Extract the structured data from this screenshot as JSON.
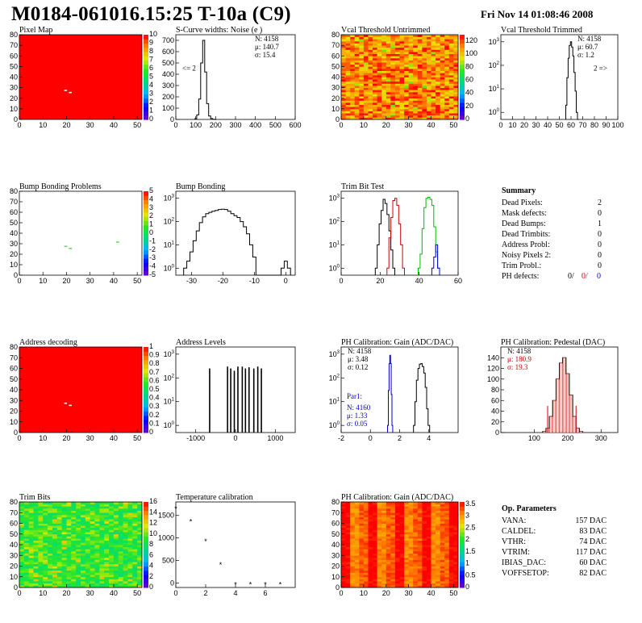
{
  "header": {
    "title": "M0184-061016.15:25 T-10a (C9)",
    "date": "Fri Nov 14 01:08:46 2008"
  },
  "colors": {
    "black": "#000000",
    "red": "#cc0000",
    "blue": "#0000cc",
    "green": "#00bb00",
    "bg": "#ffffff"
  },
  "chart_data": [
    {
      "id": "pixel_map",
      "type": "heatmap",
      "title": "Pixel Map",
      "xlim": [
        0,
        52
      ],
      "ylim": [
        0,
        80
      ],
      "xticks": [
        0,
        10,
        20,
        30,
        40,
        50
      ],
      "yticks": [
        0,
        10,
        20,
        30,
        40,
        50,
        60,
        70,
        80
      ],
      "zlim": [
        0,
        10
      ],
      "zticks": [
        0,
        1,
        2,
        3,
        4,
        5,
        6,
        7,
        8,
        9,
        10
      ],
      "fill": "red",
      "dead": [
        [
          19,
          27
        ],
        [
          21,
          25
        ]
      ]
    },
    {
      "id": "noise",
      "type": "histogram",
      "title": "S-Curve widths: Noise (e )",
      "xlim": [
        0,
        600
      ],
      "ylim": [
        0,
        750
      ],
      "log": false,
      "xticks": [
        0,
        100,
        200,
        300,
        400,
        500,
        600
      ],
      "yticks": [
        0,
        100,
        200,
        300,
        400,
        500,
        600,
        700
      ],
      "x": [
        100,
        110,
        120,
        130,
        140,
        150,
        160,
        170,
        180,
        190,
        200
      ],
      "values": [
        5,
        40,
        180,
        500,
        700,
        420,
        140,
        30,
        8,
        2,
        0
      ],
      "stats": [
        "N: 4158",
        "μ: 140.7",
        "σ: 15.4"
      ],
      "annotation": "<= 2"
    },
    {
      "id": "vcal_untrimmed",
      "type": "heatmap",
      "title": "Vcal Threshold Untrimmed",
      "xlim": [
        0,
        52
      ],
      "ylim": [
        0,
        80
      ],
      "xticks": [
        0,
        10,
        20,
        30,
        40,
        50
      ],
      "yticks": [
        0,
        10,
        20,
        30,
        40,
        50,
        60,
        70,
        80
      ],
      "zlim": [
        0,
        130
      ],
      "zticks": [
        0,
        20,
        40,
        60,
        80,
        100,
        120
      ],
      "fill": "noisy_orange"
    },
    {
      "id": "vcal_trimmed",
      "type": "histogram",
      "title": "Vcal Threshold Trimmed",
      "xlim": [
        0,
        100
      ],
      "ylim": [
        0.5,
        2000
      ],
      "log": true,
      "xticks": [
        0,
        10,
        20,
        30,
        40,
        50,
        60,
        70,
        80,
        90,
        100
      ],
      "yticks": [
        1,
        10,
        100,
        1000
      ],
      "x": [
        56,
        57,
        58,
        59,
        60,
        61,
        62,
        63,
        64,
        65,
        66
      ],
      "values": [
        2,
        30,
        200,
        700,
        1000,
        600,
        250,
        50,
        8,
        1,
        0
      ],
      "stats": [
        "N: 4158",
        "μ: 60.7",
        "σ:  1.2"
      ],
      "annotation": "2 =>"
    },
    {
      "id": "bump_problems",
      "type": "heatmap",
      "title": "Bump Bonding Problems",
      "xlim": [
        0,
        52
      ],
      "ylim": [
        0,
        80
      ],
      "xticks": [
        0,
        10,
        20,
        30,
        40,
        50
      ],
      "yticks": [
        0,
        10,
        20,
        30,
        40,
        50,
        60,
        70,
        80
      ],
      "zlim": [
        -5,
        5
      ],
      "zticks": [
        -5,
        -4,
        -3,
        -2,
        -1,
        0,
        1,
        2,
        3,
        4,
        5
      ],
      "fill": "white",
      "marks": [
        [
          19,
          27
        ],
        [
          21,
          25
        ],
        [
          41,
          31
        ]
      ]
    },
    {
      "id": "bump_bonding",
      "type": "histogram",
      "title": "Bump Bonding",
      "xlim": [
        -35,
        3
      ],
      "ylim": [
        0.5,
        2000
      ],
      "log": true,
      "xticks": [
        -30,
        -20,
        -10,
        0
      ],
      "yticks": [
        1,
        10,
        100,
        1000
      ],
      "x": [
        -32,
        -31,
        -30,
        -29,
        -28,
        -27,
        -26,
        -25,
        -24,
        -23,
        -22,
        -21,
        -20,
        -19,
        -18,
        -17,
        -16,
        -15,
        -14,
        -13,
        -12,
        -11,
        -10,
        -9,
        -8,
        -7,
        -6,
        -5,
        -4,
        -3,
        -2,
        -1,
        0,
        1
      ],
      "values": [
        1,
        2,
        5,
        15,
        40,
        90,
        160,
        220,
        250,
        280,
        300,
        330,
        340,
        330,
        280,
        220,
        180,
        150,
        100,
        60,
        30,
        10,
        3,
        0,
        0,
        0,
        0,
        0,
        0,
        0,
        0,
        1,
        2,
        1
      ]
    },
    {
      "id": "trim_bit_test",
      "type": "histogram",
      "title": "Trim Bit Test",
      "xlim": [
        0,
        60
      ],
      "ylim": [
        0.5,
        2000
      ],
      "log": true,
      "xticks": [
        0,
        20,
        40,
        60
      ],
      "yticks": [
        1,
        10,
        100,
        1000
      ],
      "series": [
        {
          "color": "#000000",
          "x": [
            18,
            19,
            20,
            21,
            22,
            23,
            24,
            25,
            26,
            27
          ],
          "values": [
            1,
            10,
            80,
            300,
            900,
            600,
            200,
            40,
            6,
            1
          ]
        },
        {
          "color": "#cc0000",
          "x": [
            24,
            25,
            26,
            27,
            28,
            29,
            30,
            31,
            32
          ],
          "values": [
            1,
            20,
            150,
            800,
            1000,
            500,
            80,
            10,
            1
          ]
        },
        {
          "color": "#00bb00",
          "x": [
            40,
            41,
            42,
            43,
            44,
            45,
            46,
            47,
            48,
            49,
            50
          ],
          "values": [
            1,
            4,
            50,
            400,
            1000,
            1100,
            900,
            500,
            60,
            5,
            1
          ]
        },
        {
          "color": "#0000cc",
          "x": [
            47,
            48,
            49,
            50
          ],
          "values": [
            1,
            3,
            10,
            1
          ]
        }
      ]
    },
    {
      "id": "address_decoding",
      "type": "heatmap",
      "title": "Address decoding",
      "xlim": [
        0,
        52
      ],
      "ylim": [
        0,
        80
      ],
      "xticks": [
        0,
        10,
        20,
        30,
        40,
        50
      ],
      "yticks": [
        0,
        10,
        20,
        30,
        40,
        50,
        60,
        70,
        80
      ],
      "zlim": [
        0,
        1
      ],
      "zticks": [
        0,
        0.1,
        0.2,
        0.3,
        0.4,
        0.5,
        0.6,
        0.7,
        0.8,
        0.9,
        1
      ],
      "fill": "red",
      "dead": [
        [
          19,
          27
        ],
        [
          21,
          25
        ]
      ]
    },
    {
      "id": "address_levels",
      "type": "histogram",
      "title": "Address Levels",
      "xlim": [
        -1500,
        1500
      ],
      "ylim": [
        0.5,
        2000
      ],
      "log": true,
      "xticks": [
        -1000,
        0,
        1000
      ],
      "yticks": [
        1,
        10,
        100,
        1000
      ],
      "spikes": [
        [
          -650,
          250
        ],
        [
          -200,
          300
        ],
        [
          -120,
          250
        ],
        [
          -30,
          200
        ],
        [
          60,
          300
        ],
        [
          170,
          300
        ],
        [
          250,
          250
        ],
        [
          340,
          280
        ],
        [
          460,
          250
        ],
        [
          560,
          300
        ],
        [
          650,
          250
        ]
      ]
    },
    {
      "id": "ph_gain",
      "type": "histogram",
      "title": "PH Calibration: Gain (ADC/DAC)",
      "xlim": [
        -2,
        6
      ],
      "ylim": [
        0.5,
        2000
      ],
      "log": true,
      "xticks": [
        -2,
        0,
        2,
        4
      ],
      "yticks": [
        1,
        10,
        100,
        1000
      ],
      "series": [
        {
          "color": "#000000",
          "x": [
            3.0,
            3.1,
            3.2,
            3.3,
            3.4,
            3.5,
            3.6,
            3.7,
            3.8,
            3.9,
            4.0
          ],
          "values": [
            1,
            10,
            80,
            250,
            380,
            400,
            300,
            160,
            40,
            5,
            1
          ]
        },
        {
          "color": "#0000cc",
          "x": [
            1.2,
            1.25,
            1.3,
            1.35,
            1.4,
            1.45,
            1.5
          ],
          "values": [
            1,
            30,
            400,
            900,
            400,
            20,
            1
          ]
        }
      ],
      "stats": [
        "N: 4158",
        "μ: 3.48",
        "σ: 0.12"
      ],
      "stats2_label": "Par1:",
      "stats2": [
        "N: 4160",
        "μ: 1.33",
        "σ: 0.05"
      ]
    },
    {
      "id": "ph_pedestal",
      "type": "histogram",
      "title": "PH Calibration: Pedestal (DAC)",
      "xlim": [
        0,
        350
      ],
      "ylim": [
        0,
        160
      ],
      "log": false,
      "xticks": [
        100,
        200,
        300
      ],
      "yticks": [
        0,
        20,
        40,
        60,
        80,
        100,
        120,
        140
      ],
      "x": [
        130,
        140,
        150,
        160,
        170,
        180,
        190,
        200,
        210,
        220,
        230,
        240
      ],
      "values": [
        2,
        8,
        30,
        60,
        100,
        130,
        140,
        110,
        70,
        30,
        8,
        2
      ],
      "stats": [
        "N: 4158",
        "μ: 180.9",
        "σ: 19.3"
      ]
    },
    {
      "id": "trim_bits",
      "type": "heatmap",
      "title": "Trim Bits",
      "xlim": [
        0,
        52
      ],
      "ylim": [
        0,
        80
      ],
      "xticks": [
        0,
        10,
        20,
        30,
        40,
        50
      ],
      "yticks": [
        0,
        10,
        20,
        30,
        40,
        50,
        60,
        70,
        80
      ],
      "zlim": [
        0,
        16
      ],
      "zticks": [
        0,
        2,
        4,
        6,
        8,
        10,
        12,
        14,
        16
      ],
      "fill": "noisy_green"
    },
    {
      "id": "temp_calib",
      "type": "scatter",
      "title": "Temperature calibration",
      "xlim": [
        0,
        8
      ],
      "ylim": [
        -100,
        1800
      ],
      "xticks": [
        0,
        2,
        4,
        6
      ],
      "yticks": [
        0,
        500,
        1000,
        1500
      ],
      "x": [
        0,
        1,
        2,
        3,
        4,
        5,
        6,
        7
      ],
      "values": [
        1680,
        1400,
        960,
        440,
        0,
        0,
        0,
        0
      ]
    },
    {
      "id": "ph_gain_map",
      "type": "heatmap",
      "title": "PH Calibration: Gain (ADC/DAC)",
      "xlim": [
        0,
        52
      ],
      "ylim": [
        0,
        80
      ],
      "xticks": [
        0,
        10,
        20,
        30,
        40,
        50
      ],
      "yticks": [
        0,
        10,
        20,
        30,
        40,
        50,
        60,
        70,
        80
      ],
      "zlim": [
        0,
        3.6
      ],
      "zticks": [
        0,
        0.5,
        1,
        1.5,
        2,
        2.5,
        3,
        3.5
      ],
      "fill": "columns_orange"
    }
  ],
  "summary": {
    "title": "Summary",
    "rows": [
      {
        "label": "Dead Pixels:",
        "value": "2"
      },
      {
        "label": "Mask defects:",
        "value": "0"
      },
      {
        "label": "Dead Bumps:",
        "value": "1"
      },
      {
        "label": "Dead Trimbits:",
        "value": "0"
      },
      {
        "label": "Address Probl:",
        "value": "0"
      },
      {
        "label": "Noisy Pixels 2:",
        "value": "0"
      },
      {
        "label": "Trim Probl.:",
        "value": "0"
      }
    ],
    "ph_label": "PH defects:",
    "ph_values": [
      "0/",
      "0/",
      "0"
    ]
  },
  "op_params": {
    "title": "Op. Parameters",
    "rows": [
      {
        "label": "VANA:",
        "value": "157 DAC"
      },
      {
        "label": "CALDEL:",
        "value": "83 DAC"
      },
      {
        "label": "VTHR:",
        "value": "74 DAC"
      },
      {
        "label": "VTRIM:",
        "value": "117 DAC"
      },
      {
        "label": "IBIAS_DAC:",
        "value": "60 DAC"
      },
      {
        "label": "VOFFSETOP:",
        "value": "82 DAC"
      }
    ]
  }
}
